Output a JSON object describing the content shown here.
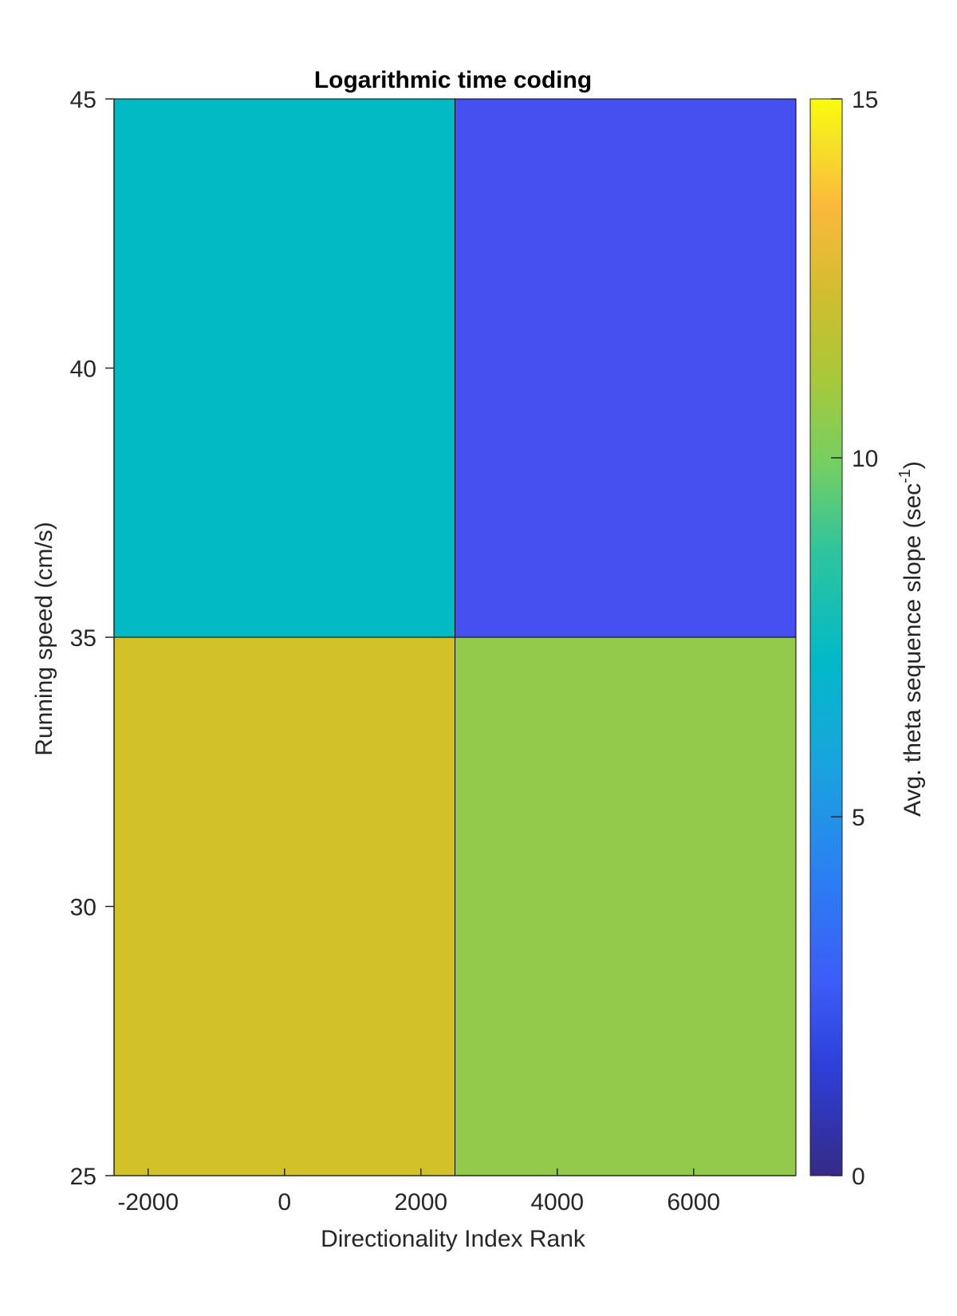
{
  "chart_data": {
    "type": "heatmap",
    "title": "Logarithmic time coding",
    "xlabel": "Directionality Index Rank",
    "ylabel": "Running speed (cm/s)",
    "colorbar_label": "Avg. theta sequence slope (sec",
    "colorbar_label_superscript": "-1",
    "colorbar_label_suffix": ")",
    "xlim": [
      -2500,
      7500
    ],
    "ylim": [
      25,
      45
    ],
    "xticks": [
      -2000,
      0,
      2000,
      4000,
      6000
    ],
    "xtick_labels": [
      "-2000",
      "0",
      "2000",
      "4000",
      "6000"
    ],
    "yticks": [
      25,
      30,
      35,
      40,
      45
    ],
    "ytick_labels": [
      "25",
      "30",
      "35",
      "40",
      "45"
    ],
    "clim": [
      0,
      15
    ],
    "colorbar_ticks": [
      0,
      5,
      10,
      15
    ],
    "colorbar_tick_labels": [
      "0",
      "5",
      "10",
      "15"
    ],
    "colormap": "parula",
    "cells": [
      {
        "x0": -2500,
        "x1": 2500,
        "y0": 35,
        "y1": 45,
        "value": 7.5,
        "color": "#01BAC4"
      },
      {
        "x0": 2500,
        "x1": 7500,
        "y0": 35,
        "y1": 45,
        "value": 2.2,
        "color": "#464FEF"
      },
      {
        "x0": -2500,
        "x1": 2500,
        "y0": 25,
        "y1": 35,
        "value": 12.0,
        "color": "#D2C128"
      },
      {
        "x0": 2500,
        "x1": 7500,
        "y0": 25,
        "y1": 35,
        "value": 10.6,
        "color": "#93CA4B"
      }
    ],
    "grid": false,
    "legend": "none"
  }
}
